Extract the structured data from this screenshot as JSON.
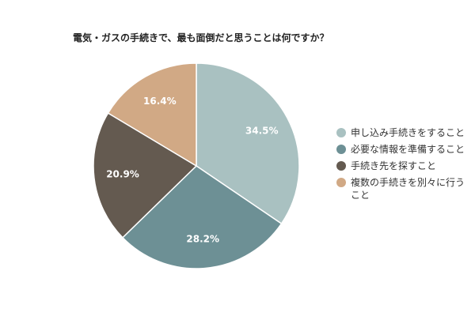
{
  "chart_data": {
    "type": "pie",
    "title": "電気・ガスの手続きで、最も面倒だと思うことは何ですか？",
    "categories": [
      "申し込み手続きをすること",
      "必要な情報を準備すること",
      "手続き先を探すこと",
      "複数の手続きを別々に行うこと"
    ],
    "values": [
      34.5,
      28.2,
      20.9,
      16.4
    ],
    "value_labels": [
      "34.5%",
      "28.2%",
      "20.9%",
      "16.4%"
    ],
    "colors": [
      "#a9c1c1",
      "#6d9095",
      "#645a50",
      "#d1a985"
    ],
    "legend": "right"
  }
}
